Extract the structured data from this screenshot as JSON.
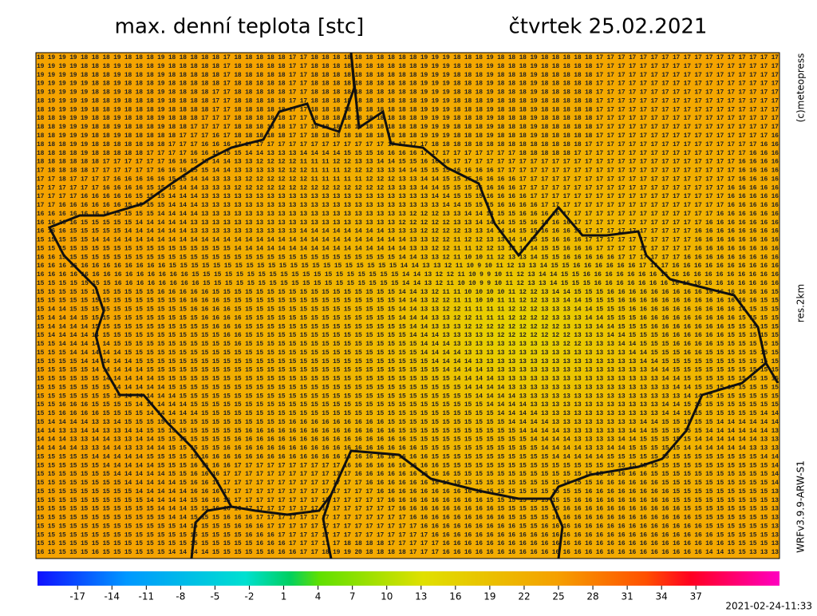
{
  "header": {
    "title": "max. denní teplota [stc]",
    "date": "čtvrtek 25.02.2021"
  },
  "side": {
    "copyright": "(c)meteopress",
    "resolution": "res.2km",
    "model": "WRFv3.9.9-ARW-S1"
  },
  "grid": {
    "rows": [
      "18 19 19 19 18 18 18 19 18 18 18 19 18 18 18 18 18 17 18 18 18 18 18 17 17 18 18 18 18 18 18 18 18 18 18 19 19 19 18 18 18 19 18 18 18 19 18 18 18 18 18 17 17 17 17 17 17 17 17 17 17 17 17 17 17 17 17 17",
      "19 19 19 19 18 18 18 19 18 18 18 19 18 18 18 18 18 17 18 18 18 18 18 17 17 18 18 18 18 18 18 18 18 18 18 19 19 19 18 18 18 19 18 18 18 19 18 18 18 18 18 17 17 17 17 17 17 17 17 17 17 17 17 17 17 17 17 17",
      "19 19 19 19 18 18 18 19 18 18 18 19 18 18 18 18 18 17 18 18 18 18 18 17 17 18 18 18 18 18 18 18 18 18 18 19 19 19 18 18 18 19 18 18 18 19 18 18 18 18 18 17 17 17 17 17 17 17 17 17 17 17 17 17 17 17 17 17",
      "19 19 19 19 19 18 18 19 18 18 18 19 18 18 18 18 18 17 18 18 18 18 18 17 17 18 18 18 18 18 18 18 18 18 18 19 19 19 18 18 18 19 18 18 18 19 18 18 18 18 18 17 17 17 17 17 17 17 17 17 17 17 17 17 17 17 17 17",
      "19 19 19 19 19 18 18 19 18 18 18 19 18 18 18 18 17 17 18 18 18 18 18 17 17 18 18 18 18 18 18 18 18 18 18 19 19 19 18 18 18 19 18 18 18 19 18 18 18 18 18 17 17 17 17 17 17 17 17 17 17 17 17 17 17 17 17 17",
      "18 19 19 19 19 18 18 19 18 18 18 19 18 18 18 18 17 17 18 18 18 18 18 17 17 18 18 18 18 18 18 18 18 18 18 19 19 19 18 18 18 19 18 18 18 19 18 18 18 18 18 17 17 17 17 17 17 17 17 17 17 17 17 17 17 17 17 17",
      "18 19 19 19 19 18 18 19 18 18 18 19 18 18 18 18 17 17 18 18 18 18 18 17 17 18 18 18 18 18 18 18 18 18 18 19 19 19 18 18 18 19 18 18 18 19 18 18 18 18 18 17 17 17 17 17 17 17 17 17 17 17 17 17 17 17 17 17",
      "18 18 19 19 19 18 18 19 18 18 18 19 18 18 18 17 17 17 18 18 18 18 18 17 17 18 18 18 18 18 18 18 18 18 18 19 19 19 18 18 18 19 18 18 18 19 18 18 18 18 18 17 17 17 17 17 17 17 17 17 17 17 17 17 17 17 17 17",
      "18 18 19 19 19 18 18 19 18 18 18 19 18 18 17 17 17 17 18 18 18 18 18 17 17 18 18 18 18 18 18 18 18 18 18 19 19 19 18 18 18 19 18 18 18 19 18 18 18 18 18 17 17 17 17 17 17 17 17 17 17 17 17 17 17 17 17 17",
      "18 18 19 19 19 18 18 19 18 18 18 18 18 17 17 17 16 17 18 18 18 18 18 17 17 18 18 18 18 18 18 18 18 18 18 19 19 19 18 18 18 19 18 18 18 19 18 18 18 18 18 17 17 17 17 17 17 17 17 17 17 17 17 17 17 17 17 16",
      "18 18 18 19 19 18 18 18 18 18 18 18 17 17 17 16 16 16 17 17 17 17 17 17 17 17 17 17 17 17 17 17 17 17 17 17 18 18 18 18 18 18 18 18 18 18 18 18 18 18 17 17 17 17 17 17 17 17 17 17 17 17 17 17 17 17 16 16",
      "18 18 18 18 19 18 18 18 18 18 17 17 17 17 16 16 15 15 15 14 14 13 13 13 14 14 14 14 15 15 15 16 16 16 16 17 17 17 17 17 17 17 17 17 18 18 18 18 18 17 17 17 17 17 17 17 17 17 17 17 17 17 17 17 17 16 16 16",
      "18 18 18 18 18 18 17 17 17 17 17 17 16 16 15 15 14 14 13 13 12 12 12 12 11 11 11 12 12 13 13 14 14 15 15 16 16 16 17 17 17 17 17 17 17 17 17 17 17 17 17 17 17 17 17 17 17 17 17 17 17 17 17 17 16 16 16 16",
      "17 18 18 18 18 17 17 17 17 17 17 16 16 16 15 15 14 14 13 13 13 13 12 12 12 11 11 11 12 12 12 13 13 14 14 15 15 15 16 16 16 16 17 17 17 17 17 17 17 17 17 17 17 17 17 17 17 17 17 17 17 17 17 17 16 16 16 16",
      "17 17 18 17 17 17 17 16 16 16 16 16 15 15 14 14 13 13 13 12 12 12 12 12 12 11 11 11 11 11 12 12 12 13 13 14 14 15 15 15 16 16 16 16 17 17 17 17 17 17 17 17 17 17 17 17 17 17 17 17 17 17 17 17 16 16 16 16",
      "17 17 17 17 17 17 16 16 16 16 15 15 15 14 14 13 13 13 12 12 12 12 12 12 12 12 12 12 12 12 12 12 13 13 13 14 14 15 15 15 16 16 16 16 17 17 17 17 17 17 17 17 17 17 17 17 17 17 17 17 17 17 17 16 16 16 16 16",
      "17 17 17 17 16 16 16 16 16 15 15 15 14 14 14 13 13 13 13 13 13 13 13 13 13 13 13 13 13 13 13 13 13 13 13 13 14 14 15 15 15 16 16 16 16 17 17 17 17 17 17 17 17 17 17 17 17 17 17 17 17 17 17 16 16 16 16 16",
      "17 17 16 16 16 16 16 16 15 15 15 15 14 14 14 13 13 13 13 13 13 13 13 13 13 13 13 13 13 13 13 13 13 13 13 13 13 14 14 15 15 15 16 16 16 16 17 17 17 17 17 17 17 17 17 17 17 17 17 17 17 17 17 16 16 16 16 16",
      "16 16 16 16 16 16 15 15 15 15 15 14 14 14 14 13 13 13 13 13 13 13 13 13 13 13 13 13 13 13 13 13 13 13 12 12 12 13 13 14 14 14 15 15 16 16 16 16 17 17 17 17 17 17 17 17 17 17 17 17 17 17 16 16 16 16 16 16",
      "16 16 16 16 15 15 15 15 15 14 14 14 14 14 13 13 13 13 13 13 13 13 13 13 13 13 13 13 13 13 13 13 13 12 12 12 12 12 13 13 14 14 14 15 15 16 16 16 16 17 17 17 17 17 17 17 17 17 17 17 17 16 16 16 16 16 16 16",
      "16 16 16 15 15 15 15 15 14 14 14 14 14 14 13 13 13 13 13 13 13 13 13 13 14 14 14 14 14 14 14 14 13 13 13 12 12 12 12 13 13 14 14 14 15 15 16 16 16 16 17 17 17 17 17 17 17 17 17 17 16 16 16 16 16 16 16 16",
      "15 15 15 15 15 14 14 14 14 14 14 14 14 14 14 14 14 14 14 14 14 14 14 14 14 14 14 14 14 14 14 14 14 14 13 13 12 12 11 12 12 13 13 14 14 15 15 16 16 16 17 17 17 17 17 17 17 17 17 17 16 16 16 16 16 16 16 16",
      "15 15 15 15 15 15 15 15 15 15 15 15 15 15 15 15 15 15 14 14 14 14 14 14 14 14 14 14 14 14 14 14 14 14 13 13 12 12 11 11 12 12 13 13 14 14 15 15 16 16 16 17 17 17 17 17 17 17 17 17 16 16 16 16 16 16 16 16",
      "16 16 15 15 15 15 15 15 15 15 15 15 15 15 15 15 15 15 15 15 15 15 15 15 15 15 15 15 15 15 15 15 15 14 14 13 13 12 11 10 10 11 12 13 13 14 15 15 16 16 16 16 16 17 17 17 17 17 17 16 16 16 16 16 16 16 16 16",
      "16 16 16 16 16 16 16 16 16 16 16 16 15 15 15 15 15 15 15 15 15 15 15 15 15 15 15 15 15 15 15 15 15 14 14 13 13 12 11 10 9 10 11 12 13 13 14 15 15 16 16 16 16 16 16 17 17 17 16 16 16 16 16 16 16 16 16 16",
      "16 16 16 16 16 16 16 16 16 16 16 16 16 16 15 15 15 15 15 15 15 15 15 15 15 15 15 15 15 15 15 15 15 14 14 13 12 12 11 10 9 9 10 11 12 13 14 14 15 15 16 16 16 16 16 16 16 16 16 16 16 16 16 16 16 16 16 16",
      "15 15 15 15 15 15 15 16 16 16 16 16 16 16 16 15 15 15 15 15 15 15 15 15 15 15 15 15 15 15 15 15 15 14 14 13 12 11 10 10 9 9 10 11 12 13 13 14 15 15 15 16 16 16 16 16 16 16 16 16 16 16 16 16 16 16 16 16",
      "15 15 15 15 15 15 15 15 15 15 15 16 16 16 16 16 15 15 15 15 15 15 15 15 15 15 15 15 15 15 15 15 15 14 14 13 12 11 11 10 10 10 10 11 12 12 13 14 14 15 15 15 16 16 16 16 16 16 16 16 16 16 16 16 16 16 16 15",
      "15 15 15 15 15 15 15 15 15 15 15 15 15 16 16 16 16 15 15 15 15 15 15 15 15 15 15 15 15 15 15 15 15 14 14 13 12 12 11 11 10 10 11 11 12 12 13 13 14 14 15 15 15 16 16 16 16 16 16 16 16 16 16 16 16 16 15 15",
      "15 14 14 15 15 15 15 15 15 15 15 15 15 15 16 16 16 16 15 15 15 15 15 15 15 15 15 15 15 15 15 15 15 14 14 13 13 12 12 11 11 11 11 12 12 12 13 13 13 14 14 15 15 15 16 16 16 16 16 16 16 16 16 16 16 15 15 15",
      "15 14 14 14 15 15 15 15 15 15 15 15 15 15 15 16 16 16 16 15 15 15 15 15 15 15 15 15 15 15 15 15 15 14 14 14 13 13 12 12 11 11 11 12 12 12 12 13 13 13 14 14 15 15 15 16 16 16 16 16 16 16 16 16 15 15 15 15",
      "15 14 14 14 14 15 15 15 15 15 15 15 15 15 15 15 16 16 16 15 15 15 15 15 15 15 15 15 15 15 15 15 15 15 14 14 13 13 13 12 12 12 12 12 12 12 12 12 13 13 13 14 14 15 15 15 16 16 16 16 16 16 16 15 15 15 15 15",
      "15 14 14 14 14 14 15 15 15 15 15 15 15 15 15 15 15 16 16 15 15 15 15 15 15 15 15 15 15 15 15 15 15 15 14 14 14 13 13 13 13 13 12 12 12 12 12 12 12 13 13 13 14 14 15 15 15 16 16 16 16 16 16 15 15 15 15 15",
      "15 15 14 14 14 14 14 15 15 15 15 15 15 15 15 15 15 15 16 15 15 15 15 15 15 15 15 15 15 15 15 15 15 15 15 14 14 14 13 13 13 13 13 13 13 13 13 13 12 12 13 13 13 14 14 15 15 15 16 16 16 16 15 15 15 15 15 15",
      "15 15 15 14 14 14 14 14 15 15 15 15 15 15 15 15 15 15 15 15 15 15 15 15 15 15 15 15 15 15 15 15 15 15 15 14 14 14 14 13 13 13 13 13 13 13 13 13 13 13 13 13 13 13 14 14 15 15 15 16 16 15 15 15 15 15 15 15",
      "15 15 15 15 14 14 14 14 14 15 15 15 15 15 15 15 15 15 15 15 15 15 15 15 15 15 15 15 15 15 15 15 15 15 15 15 14 14 14 14 13 13 13 13 13 13 13 13 13 13 13 13 13 13 13 14 14 15 15 15 15 15 15 15 15 15 15 15",
      "15 15 15 15 15 14 14 14 14 14 15 15 15 15 15 15 15 15 15 15 15 15 15 15 15 15 15 15 15 15 15 15 15 15 15 15 15 14 14 14 14 13 13 13 13 13 13 13 13 13 13 13 13 13 13 13 14 14 15 15 15 15 15 15 15 15 15 15",
      "15 15 15 15 15 15 14 14 14 14 14 15 15 15 15 15 15 15 15 15 15 15 15 15 15 15 15 15 15 15 15 15 15 15 15 15 15 15 14 14 14 14 13 13 13 13 13 13 13 13 13 13 13 13 13 13 13 14 14 15 15 15 15 15 15 15 15 15",
      "15 15 15 15 15 15 15 14 14 14 14 14 15 15 15 15 15 15 15 15 15 15 15 15 15 15 15 15 15 15 15 15 15 15 15 15 15 15 15 14 14 14 14 13 13 13 13 13 13 13 13 13 13 13 13 13 13 13 14 14 15 15 15 15 15 15 15 15",
      "15 15 15 15 15 15 15 15 14 14 14 14 14 15 15 15 15 15 15 15 15 15 15 15 15 15 15 15 15 15 15 15 15 15 15 15 15 15 15 15 14 14 14 14 13 13 13 13 13 13 13 13 13 13 13 13 13 13 13 14 14 15 15 15 15 15 15 15",
      "15 15 16 16 16 15 15 15 15 14 14 14 14 14 15 15 15 15 15 15 15 15 15 15 15 15 15 15 15 15 15 15 15 15 15 15 15 15 15 15 15 14 14 14 14 13 13 13 13 13 13 13 13 13 13 13 13 14 14 15 15 15 15 15 15 15 15 15",
      "15 15 16 16 16 16 15 15 15 15 14 14 14 14 14 15 15 15 15 15 15 15 15 15 15 15 15 15 15 15 15 15 15 15 15 15 15 15 15 15 15 15 14 14 14 14 13 13 13 13 13 13 13 13 13 13 13 14 14 15 15 15 15 15 15 15 14 14",
      "15 14 14 14 14 13 13 14 15 15 15 15 15 15 15 15 15 15 15 15 15 15 15 16 16 16 16 16 16 16 16 16 15 15 15 15 15 15 15 15 15 15 15 14 14 14 14 13 13 13 13 13 13 13 13 14 14 15 15 15 15 15 14 14 14 14 14 14",
      "14 14 13 13 14 14 13 13 14 14 15 15 15 15 15 15 15 15 15 16 16 16 16 16 16 16 16 16 16 16 16 16 16 15 15 15 15 15 15 15 15 15 15 15 14 14 14 14 13 13 13 13 13 13 14 14 15 15 15 15 15 14 14 14 14 14 14 13",
      "14 14 14 13 13 14 14 13 13 14 14 15 15 15 15 15 15 15 16 16 16 16 16 16 16 16 16 16 16 16 16 16 16 16 15 15 15 15 15 15 15 15 15 15 15 14 14 14 14 13 13 13 13 14 14 15 15 15 15 15 14 14 14 14 14 14 13 13",
      "14 14 14 14 13 13 14 14 13 13 14 14 15 15 15 15 15 16 16 16 16 16 16 16 16 16 16 16 16 16 16 16 16 16 16 15 15 15 15 15 15 15 15 15 15 15 14 14 14 14 13 13 14 14 15 15 15 15 15 14 14 14 14 14 14 13 13 13",
      "15 15 15 15 15 14 14 14 14 14 15 15 15 15 15 16 16 16 16 16 16 16 16 16 16 16 16 16 16 16 16 16 16 16 16 16 15 15 15 15 15 15 15 15 15 15 15 14 14 14 14 14 15 15 15 15 15 15 15 15 15 15 15 15 15 15 14 14",
      "15 15 15 15 15 15 14 14 14 14 14 15 15 15 16 16 16 16 17 17 17 17 17 17 17 17 17 17 16 16 16 16 16 16 16 16 16 15 15 15 15 15 15 15 15 15 15 15 15 15 15 15 15 15 15 15 15 15 15 15 15 15 15 15 15 15 15 14",
      "15 15 15 15 15 15 15 14 14 14 14 14 15 15 16 16 16 17 17 17 17 17 17 17 17 17 17 17 17 16 16 16 16 16 16 16 16 16 15 15 15 15 15 15 15 15 15 15 15 15 15 15 16 16 16 16 15 15 15 15 15 15 15 15 15 15 15 14",
      "15 15 15 15 15 15 15 15 14 14 14 14 14 15 16 16 16 17 17 17 17 17 17 17 17 17 17 17 17 17 16 16 16 16 16 16 16 16 16 15 15 15 15 15 15 15 15 15 15 15 15 16 16 16 16 16 16 15 15 15 15 15 15 15 15 15 15 14",
      "15 15 15 15 15 15 15 15 15 14 14 14 14 14 16 16 16 17 17 17 17 17 17 17 17 17 17 17 17 17 17 16 16 16 16 16 16 16 16 16 15 15 15 15 15 15 15 15 15 15 16 16 16 16 16 16 16 16 15 15 15 15 15 15 15 15 15 13",
      "15 15 15 15 15 15 15 15 15 15 14 14 14 14 15 16 16 16 17 17 17 17 17 17 17 17 17 17 17 17 17 17 16 16 16 16 16 16 16 16 16 15 15 15 15 15 15 15 15 16 16 16 16 16 16 16 16 16 15 15 15 15 15 15 15 15 15 13",
      "15 15 15 15 15 15 15 15 15 15 15 14 14 14 15 15 16 16 16 17 17 17 17 17 17 17 17 17 17 17 17 17 17 16 16 16 16 16 16 16 16 16 15 15 15 15 15 15 16 16 16 16 16 16 16 16 16 16 16 15 15 15 15 15 15 15 15 13",
      "15 15 15 15 15 15 15 15 15 15 15 15 14 14 15 15 15 16 16 16 17 17 17 17 17 17 17 17 17 17 17 17 17 17 16 16 16 16 16 16 16 16 16 15 15 15 15 16 16 16 16 16 16 16 16 16 16 16 16 16 15 15 15 15 15 15 15 13",
      "15 15 15 15 15 15 15 15 15 15 15 15 15 14 15 15 15 15 16 16 16 17 17 17 17 17 17 17 17 17 17 17 17 17 17 16 16 16 16 16 16 16 16 16 15 15 16 16 16 16 16 16 16 16 16 16 16 16 16 16 16 15 15 15 15 15 15 13",
      "15 15 15 15 15 15 15 15 15 15 15 15 15 15 15 15 15 15 15 16 16 16 17 17 17 17 17 17 17 17 17 17 17 17 17 17 16 16 16 16 16 16 16 16 16 16 16 16 16 16 16 16 16 16 16 16 16 16 16 16 16 16 15 15 15 15 15 13",
      "15 15 15 15 15 15 15 15 15 15 15 15 15 15 15 15 15 15 15 15 16 16 16 17 17 17 17 17 18 18 18 18 17 17 17 17 17 16 16 16 16 16 16 16 16 16 16 16 16 16 16 16 16 16 16 16 16 16 16 16 16 16 16 15 15 15 15 13",
      "16 15 15 15 15 16 15 15 15 15 15 15 14 14 14 14 15 15 15 15 15 16 16 16 17 17 18 19 19 20 18 18 18 18 17 17 17 16 16 16 16 16 16 16 16 16 16 16 16 16 16 16 16 16 16 16 16 16 16 16 16 14 14 15 15 13 13 13"
    ]
  },
  "colorbar": {
    "ticks": [
      -17,
      -14,
      -11,
      -8,
      -5,
      -2,
      1,
      4,
      7,
      10,
      13,
      16,
      19,
      22,
      25,
      28,
      31,
      34,
      37
    ],
    "lim": [
      -20.5,
      44.3
    ]
  },
  "footer": {
    "timestamp": "2021-02-24-11:33"
  }
}
